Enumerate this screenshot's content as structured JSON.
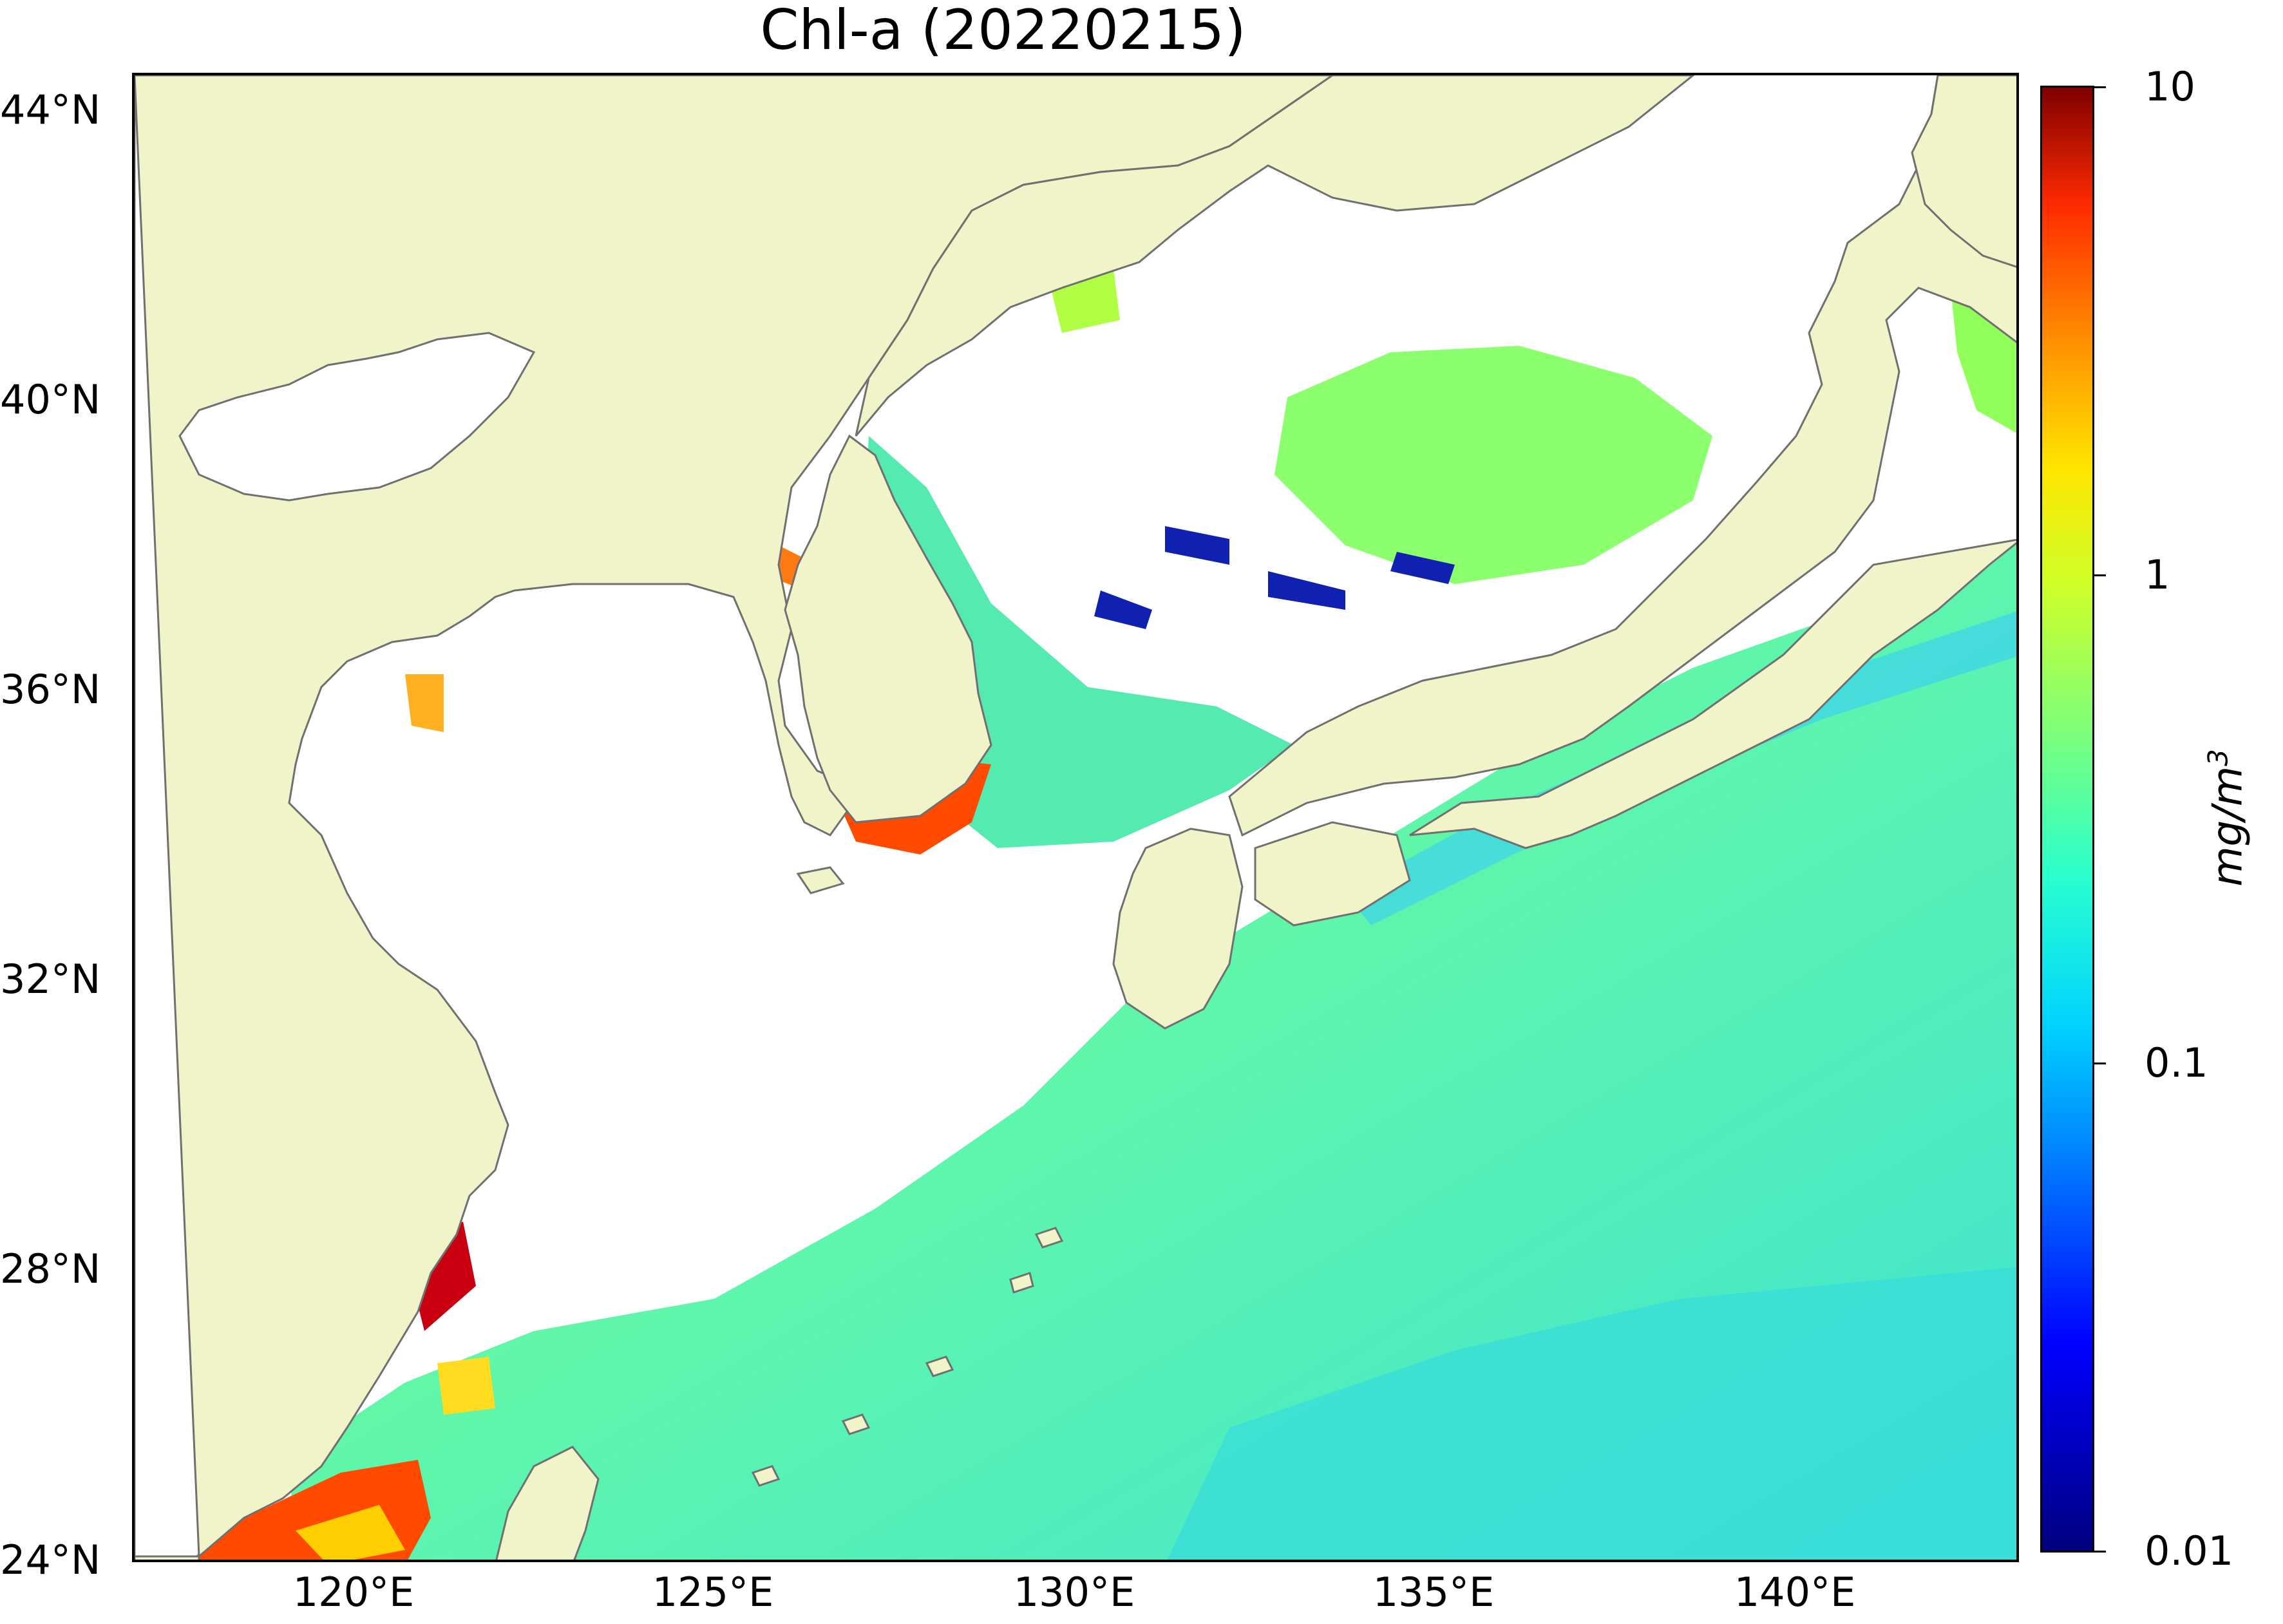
{
  "title": "Chl-a (20220215)",
  "map": {
    "lat_range": [
      24,
      44.5
    ],
    "lon_range": [
      117,
      143
    ],
    "lat_ticks": [
      "44°N",
      "40°N",
      "36°N",
      "32°N",
      "28°N",
      "24°N"
    ],
    "lon_ticks": [
      "120°E",
      "125°E",
      "130°E",
      "135°E",
      "140°E"
    ],
    "land_color": "#f0f4c8",
    "coastline_color": "#707070",
    "missing_data_color": "#ffffff"
  },
  "colorbar": {
    "scale": "log",
    "range": [
      0.01,
      10
    ],
    "tick_labels": [
      "10",
      "1",
      "0.1",
      "0.01"
    ],
    "unit_base": "mg/m",
    "unit_exp": "3",
    "colormap": "jet"
  }
}
